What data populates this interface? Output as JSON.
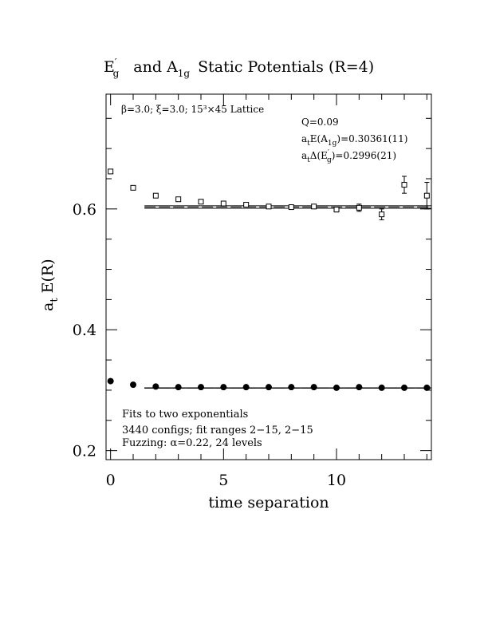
{
  "chart_data": {
    "type": "scatter",
    "title": {
      "part1_main": "E",
      "part1_sup": "′",
      "part1_sub": "g",
      "part2_pre": "and A",
      "part2_sub": "1g",
      "part3": "Static Potentials (R=4)"
    },
    "xlabel": "time separation",
    "ylabel": {
      "main": "a",
      "sub": "t",
      "rest": " E(R)"
    },
    "xlim": [
      -0.2,
      14.2
    ],
    "ylim": [
      0.185,
      0.79
    ],
    "xticks": [
      0,
      5,
      10
    ],
    "yticks": [
      0.2,
      0.4,
      0.6
    ],
    "ytick_labels": [
      "0.2",
      "0.4",
      "0.6"
    ],
    "xtick_labels": [
      "0",
      "5",
      "10"
    ],
    "grid": false,
    "annotations": {
      "lattice": "β=3.0; ξ=3.0; 15³×45 Lattice",
      "q_value": "Q=0.09",
      "energy": {
        "pre": "a",
        "pre_sub": "t",
        "mid": "E(A",
        "mid_sub": "1g",
        "post": ")=0.30361(11)"
      },
      "delta": {
        "pre": "a",
        "pre_sub": "t",
        "mid": "Δ(E",
        "mid_sup": "′",
        "mid_sub": "g",
        "post": ")=0.2996(21)"
      },
      "fits": "Fits to two exponentials",
      "configs": "3440 configs; fit ranges 2−15, 2−15",
      "fuzzing": "Fuzzing: α=0.22, 24 levels"
    },
    "series": [
      {
        "marker": "open-square",
        "x": [
          0,
          1,
          2,
          3,
          4,
          5,
          6,
          7,
          8,
          9,
          10,
          11,
          12,
          13,
          14
        ],
        "y": [
          0.662,
          0.635,
          0.622,
          0.616,
          0.612,
          0.609,
          0.607,
          0.604,
          0.603,
          0.604,
          0.599,
          0.602,
          0.591,
          0.64,
          0.622
        ],
        "err": [
          0.001,
          0.001,
          0.001,
          0.001,
          0.0015,
          0.0015,
          0.002,
          0.002,
          0.002,
          0.003,
          0.004,
          0.006,
          0.009,
          0.014,
          0.022
        ]
      },
      {
        "marker": "filled-circle",
        "x": [
          0,
          1,
          2,
          3,
          4,
          5,
          6,
          7,
          8,
          9,
          10,
          11,
          12,
          13,
          14
        ],
        "y": [
          0.315,
          0.309,
          0.306,
          0.305,
          0.305,
          0.305,
          0.305,
          0.305,
          0.305,
          0.305,
          0.304,
          0.305,
          0.304,
          0.304,
          0.304
        ],
        "err": [
          0.0004,
          0.0004,
          0.0004,
          0.0004,
          0.0004,
          0.0004,
          0.0004,
          0.0004,
          0.0004,
          0.0004,
          0.0004,
          0.0004,
          0.0004,
          0.0004,
          0.0004
        ]
      }
    ],
    "fits": [
      {
        "x_range": [
          1.5,
          14.2
        ],
        "y": 0.6032,
        "y_band": 0.0021
      },
      {
        "x_range": [
          1.5,
          14.2
        ],
        "y": 0.30361,
        "y_band": 0.0003
      }
    ]
  }
}
